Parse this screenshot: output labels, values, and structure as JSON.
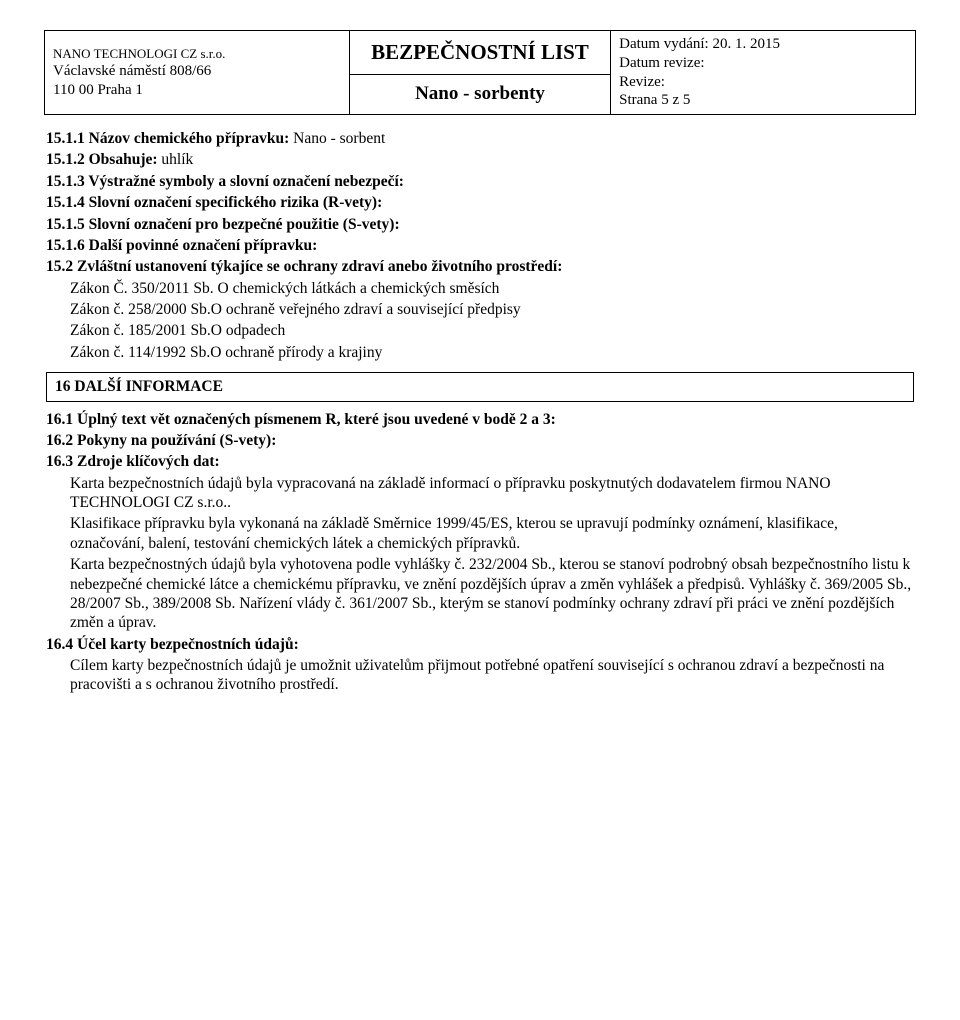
{
  "header": {
    "title": "BEZPEČNOSTNÍ LIST",
    "company_line1": "NANO TECHNOLOGI CZ s.r.o.",
    "company_line2": "Václavské náměstí 808/66",
    "company_line3": "110 00 Praha 1",
    "product": "Nano - sorbenty",
    "date_issued": "Datum vydání:  20. 1. 2015",
    "date_revised": "Datum revize:",
    "revision": "Revize:",
    "page": "Strana 5 z 5"
  },
  "items": {
    "i15_1_1": "15.1.1  Názov chemického přípravku: ",
    "i15_1_1_val": "Nano - sorbent",
    "i15_1_2": "15.1.2  Obsahuje: ",
    "i15_1_2_val": "uhlík",
    "i15_1_3": "15.1.3  Výstražné symboly a slovní označení nebezpečí:",
    "i15_1_4": "15.1.4  Slovní označení specifického rizika (R-vety):",
    "i15_1_5": "15.1.5  Slovní označení pro bezpečné použitie (S-vety):",
    "i15_1_6": "15.1.6 Další povinné označení přípravku:",
    "i15_2": "15.2 Zvláštní ustanovení týkajíce se ochrany zdraví anebo životního prostředí:",
    "law1": "Zákon Č. 350/2011 Sb. O chemických látkách a chemických směsích",
    "law2": "Zákon č. 258/2000 Sb.O ochraně veřejného zdraví a související předpisy",
    "law3": "Zákon č. 185/2001 Sb.O odpadech",
    "law4": "Zákon č. 114/1992 Sb.O ochraně přírody a krajiny"
  },
  "section16": {
    "title": "16  DALŠÍ INFORMACE",
    "i16_1": "16.1 Úplný text vět označených písmenem R, které jsou uvedené v bodě 2 a 3:",
    "i16_2": "16.2 Pokyny na používání (S-vety):",
    "i16_3_head": "16.3    Zdroje klíčových dat:",
    "i16_3_p1": "Karta bezpečnostních údajů byla vypracovaná na základě informací o přípravku poskytnutých dodavatelem firmou NANO TECHNOLOGI CZ s.r.o..",
    "i16_3_p2": "Klasifikace přípravku byla vykonaná na základě Směrnice 1999/45/ES, kterou se upravují podmínky oznámení, klasifikace, označování, balení, testování chemických látek a chemických přípravků.",
    "i16_3_p3": "Karta bezpečnostných údajů byla vyhotovena podle vyhlášky č. 232/2004 Sb., kterou se stanoví podrobný obsah bezpečnostního listu k nebezpečné chemické látce a chemickému přípravku, ve znění pozdějších úprav a změn vyhlášek a předpisů. Vyhlášky č. 369/2005 Sb., 28/2007 Sb., 389/2008 Sb. Nařízení vlády č. 361/2007 Sb., kterým se stanoví podmínky ochrany zdraví při práci ve znění pozdějších změn a úprav.",
    "i16_4_head": "16.4 Účel karty bezpečnostních údajů:",
    "i16_4_p": "Cílem karty bezpečnostních údajů je umožnit uživatelům přijmout potřebné opatření související s ochranou zdraví a bezpečnosti na pracovišti a s ochranou životního prostředí."
  }
}
